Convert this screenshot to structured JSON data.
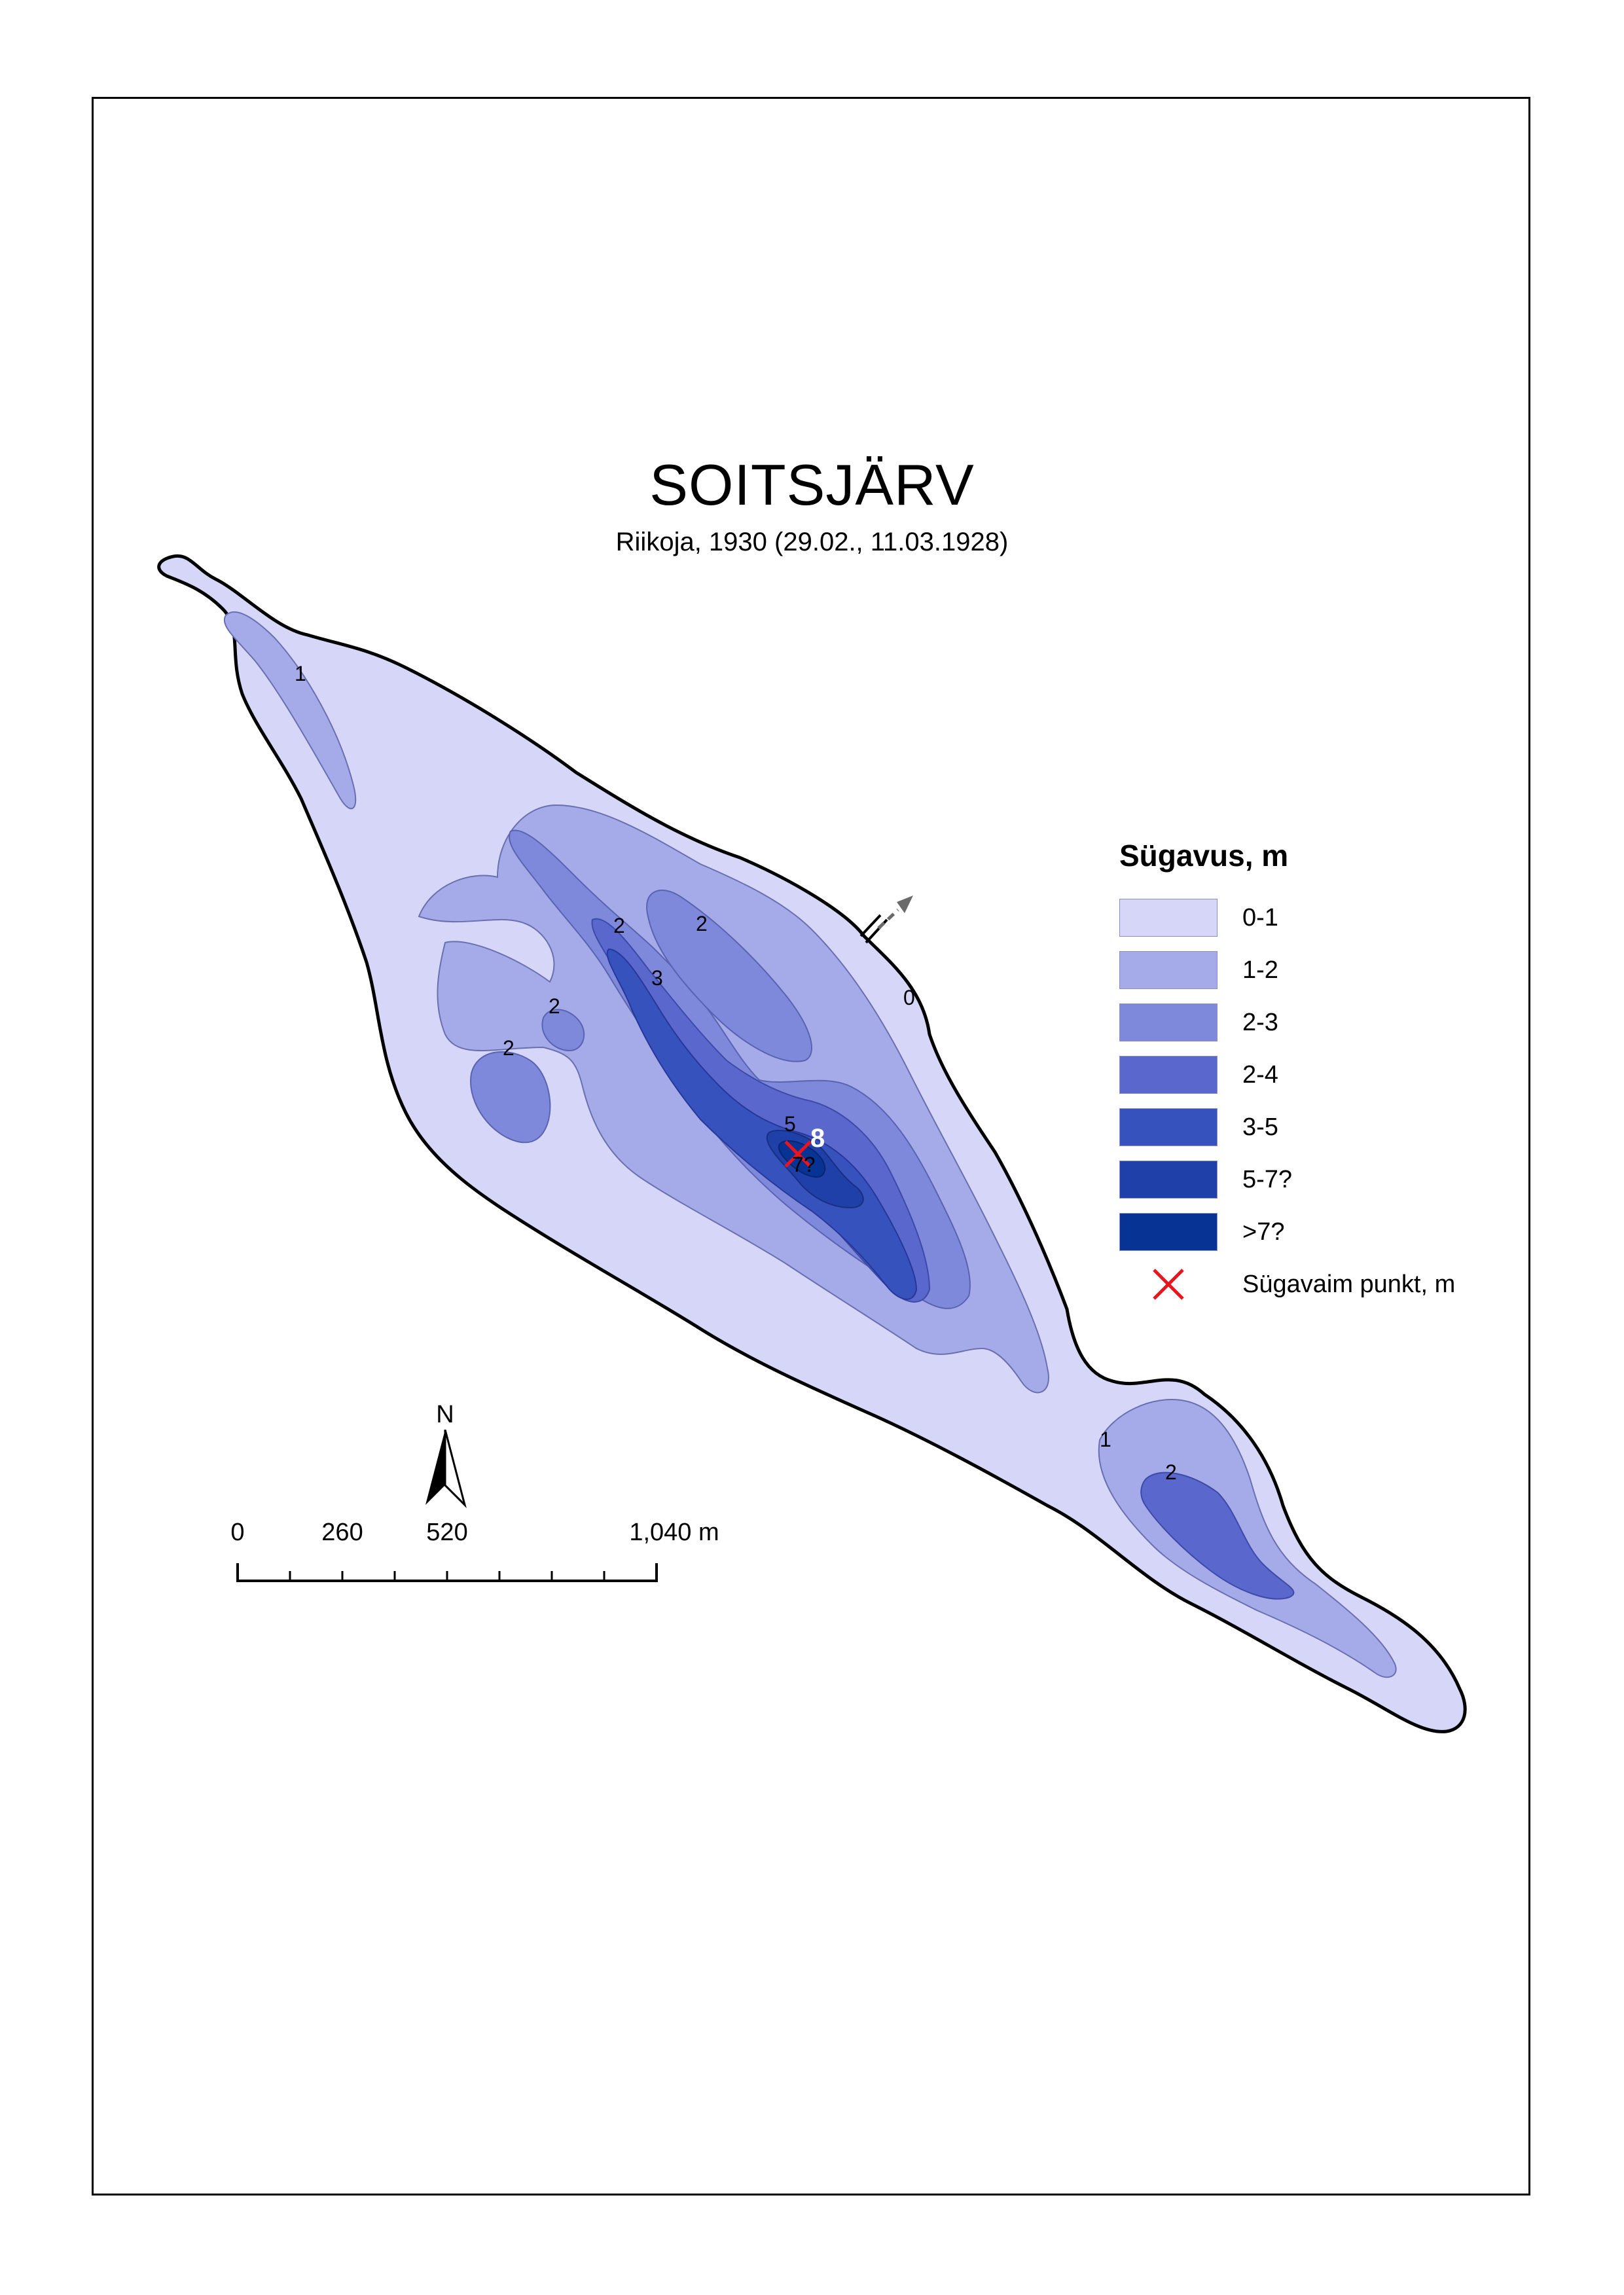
{
  "title": "SOITSJÄRV",
  "subtitle": "Riikoja, 1930 (29.02., 11.03.1928)",
  "legend": {
    "title": "Sügavus, m",
    "items": [
      {
        "label": "0-1",
        "color": "#d6d7f8"
      },
      {
        "label": "1-2",
        "color": "#a5aae8"
      },
      {
        "label": "2-3",
        "color": "#7f89dc"
      },
      {
        "label": "2-4",
        "color": "#5a67cc"
      },
      {
        "label": "3-5",
        "color": "#3552bd"
      },
      {
        "label": "5-7?",
        "color": "#1e40a8"
      },
      {
        "label": ">7?",
        "color": "#073394"
      }
    ],
    "deepest_label": "Sügavaim punkt, m",
    "deepest_color": "#e8141e"
  },
  "map_labels": {
    "d1_nw": "1",
    "d2_a": "2",
    "d2_b": "2",
    "d2_c": "2",
    "d2_d": "2",
    "d3": "3",
    "d5": "5",
    "d7q": "7?",
    "d0": "0",
    "d1_se": "1",
    "d2_se": "2",
    "deepest_value": "8"
  },
  "north": "N",
  "scale": {
    "labels": [
      "0",
      "260",
      "520",
      "1,040 m"
    ]
  }
}
